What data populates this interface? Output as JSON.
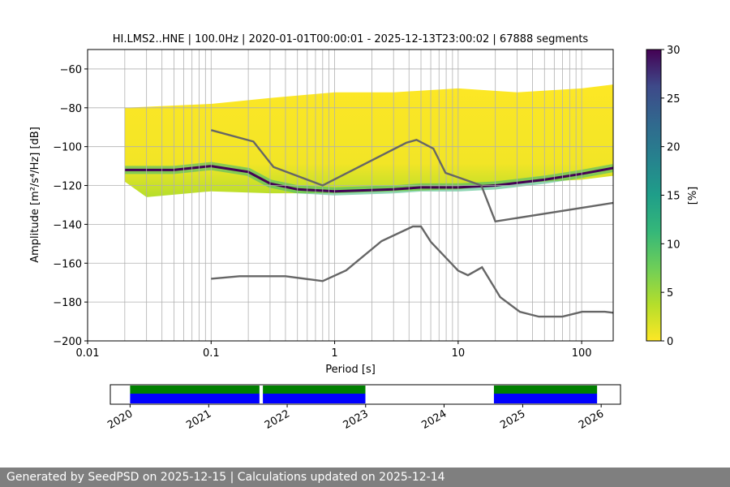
{
  "chart_data": [
    {
      "type": "heatmap",
      "title": "HI.LMS2..HNE | 100.0Hz | 2020-01-01T00:00:01 - 2025-12-13T23:00:02 | 67888 segments",
      "xlabel": "Period [s]",
      "ylabel": "Amplitude [m²/s⁴/Hz] [dB]",
      "xscale": "log",
      "xlim": [
        0.01,
        180
      ],
      "ylim": [
        -200,
        -50
      ],
      "x_ticks": [
        {
          "value": 0.01,
          "label": "0.01"
        },
        {
          "value": 0.1,
          "label": "0.1"
        },
        {
          "value": 1,
          "label": "1"
        },
        {
          "value": 10,
          "label": "10"
        },
        {
          "value": 100,
          "label": "100"
        }
      ],
      "y_ticks": [
        {
          "value": -60,
          "label": "−60"
        },
        {
          "value": -80,
          "label": "−80"
        },
        {
          "value": -100,
          "label": "−100"
        },
        {
          "value": -120,
          "label": "−120"
        },
        {
          "value": -140,
          "label": "−140"
        },
        {
          "value": -160,
          "label": "−160"
        },
        {
          "value": -180,
          "label": "−180"
        },
        {
          "value": -200,
          "label": "−200"
        }
      ],
      "grid": true,
      "colorbar": {
        "label": "[%]",
        "range": [
          0,
          30
        ],
        "ticks": [
          {
            "value": 0,
            "label": "0"
          },
          {
            "value": 5,
            "label": "5"
          },
          {
            "value": 10,
            "label": "10"
          },
          {
            "value": 15,
            "label": "15"
          },
          {
            "value": 20,
            "label": "20"
          },
          {
            "value": 25,
            "label": "25"
          },
          {
            "value": 30,
            "label": "30"
          }
        ],
        "colormap": "viridis_r"
      },
      "density_band": {
        "period_range": [
          0.02,
          180
        ],
        "min_edge": [
          [
            0.02,
            -118
          ],
          [
            0.03,
            -126
          ],
          [
            0.1,
            -123
          ],
          [
            0.3,
            -124
          ],
          [
            1,
            -124
          ],
          [
            3,
            -123
          ],
          [
            10,
            -122
          ],
          [
            20,
            -120
          ],
          [
            50,
            -118
          ],
          [
            100,
            -117
          ],
          [
            180,
            -115
          ]
        ],
        "mode_curve": [
          [
            0.02,
            -112
          ],
          [
            0.05,
            -112
          ],
          [
            0.1,
            -110
          ],
          [
            0.2,
            -113
          ],
          [
            0.3,
            -119
          ],
          [
            0.5,
            -122
          ],
          [
            1,
            -123
          ],
          [
            3,
            -122
          ],
          [
            5,
            -121
          ],
          [
            10,
            -121
          ],
          [
            20,
            -120
          ],
          [
            50,
            -117
          ],
          [
            100,
            -114
          ],
          [
            180,
            -111
          ]
        ],
        "max_edge": [
          [
            0.02,
            -80
          ],
          [
            0.1,
            -78
          ],
          [
            0.3,
            -75
          ],
          [
            1,
            -72
          ],
          [
            3,
            -72
          ],
          [
            10,
            -70
          ],
          [
            30,
            -72
          ],
          [
            100,
            -70
          ],
          [
            180,
            -68
          ]
        ]
      },
      "series": [
        {
          "name": "",
          "kind": "high-noise-model",
          "x": [
            0.1,
            0.22,
            0.32,
            0.8,
            3.8,
            4.6,
            6.3,
            7.9,
            15.4,
            20,
            354.8
          ],
          "y": [
            -91.5,
            -97.4,
            -110.5,
            -120,
            -98,
            -96.5,
            -101,
            -113.5,
            -120,
            -138.5,
            -126
          ]
        },
        {
          "name": "",
          "kind": "low-noise-model",
          "x": [
            0.1,
            0.17,
            0.4,
            0.8,
            1.24,
            2.4,
            4.3,
            5,
            6,
            10,
            12,
            15.6,
            21.9,
            31.6,
            45,
            70,
            101,
            154,
            328
          ],
          "y": [
            -168,
            -166.7,
            -166.7,
            -169.2,
            -163.7,
            -148.6,
            -141.1,
            -141.1,
            -149,
            -163.8,
            -166.2,
            -162.1,
            -177.5,
            -185,
            -187.5,
            -187.5,
            -185,
            -185,
            -187.5
          ]
        }
      ]
    },
    {
      "type": "timeline",
      "xlim": [
        "2019-10-01",
        "2026-04-01"
      ],
      "x_ticks": [
        "2020",
        "2021",
        "2022",
        "2023",
        "2024",
        "2025",
        "2026"
      ],
      "data_segments": [
        [
          "2020-01-01",
          "2021-08-25"
        ],
        [
          "2021-09-10",
          "2022-12-31"
        ],
        [
          "2024-08-20",
          "2025-12-13"
        ]
      ],
      "colors": {
        "top_band": "#008000",
        "bottom_band": "#0000ff"
      }
    }
  ],
  "footer": {
    "text": "Generated by SeedPSD on 2025-12-15 | Calculations updated on 2025-12-14"
  }
}
